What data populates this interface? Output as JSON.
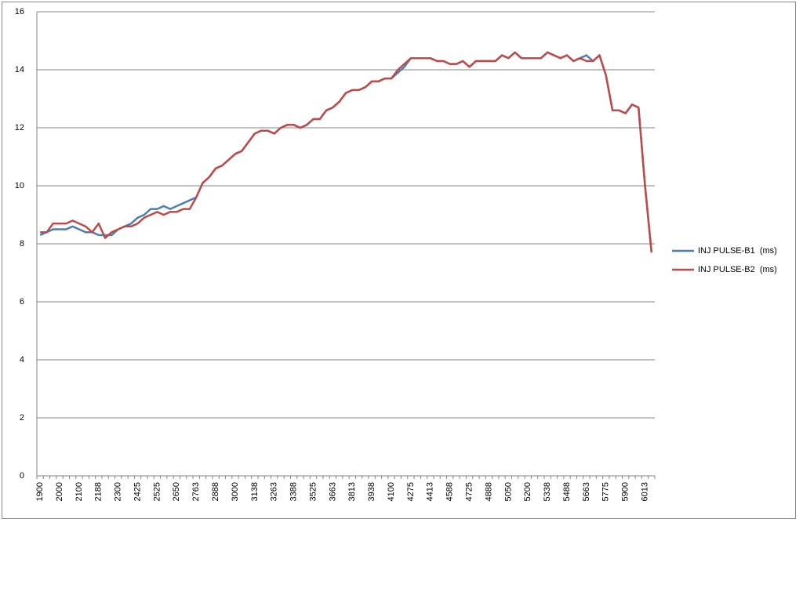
{
  "chart_data": {
    "type": "line",
    "categories": [
      "1900",
      null,
      null,
      "2000",
      null,
      null,
      "2100",
      null,
      null,
      "2188",
      null,
      null,
      "2300",
      null,
      null,
      "2425",
      null,
      null,
      "2525",
      null,
      null,
      "2650",
      null,
      null,
      "2763",
      null,
      null,
      "2888",
      null,
      null,
      "3000",
      null,
      null,
      "3138",
      null,
      null,
      "3263",
      null,
      null,
      "3388",
      null,
      null,
      "3525",
      null,
      null,
      "3663",
      null,
      null,
      "3813",
      null,
      null,
      "3938",
      null,
      null,
      "4100",
      null,
      null,
      "4275",
      null,
      null,
      "4413",
      null,
      null,
      "4588",
      null,
      null,
      "4725",
      null,
      null,
      "4888",
      null,
      null,
      "5050",
      null,
      null,
      "5200",
      null,
      null,
      "5338",
      null,
      null,
      "5488",
      null,
      null,
      "5663",
      null,
      null,
      "5775",
      null,
      null,
      "5900",
      null,
      null,
      "6013",
      null
    ],
    "series": [
      {
        "name": "INJ PULSE-B1  (ms)",
        "color": "#4a7ebb",
        "values": [
          8.3,
          8.4,
          8.5,
          8.5,
          8.5,
          8.6,
          8.5,
          8.4,
          8.4,
          8.3,
          8.3,
          8.3,
          8.5,
          8.6,
          8.7,
          8.9,
          9.0,
          9.2,
          9.2,
          9.3,
          9.2,
          9.3,
          9.4,
          9.5,
          9.6,
          10.1,
          10.3,
          10.6,
          10.7,
          10.9,
          11.1,
          11.2,
          11.5,
          11.8,
          11.9,
          11.9,
          11.8,
          12.0,
          12.1,
          12.1,
          12.0,
          12.1,
          12.3,
          12.3,
          12.6,
          12.7,
          12.9,
          13.2,
          13.3,
          13.3,
          13.4,
          13.6,
          13.6,
          13.7,
          13.7,
          13.9,
          14.1,
          14.4,
          14.4,
          14.4,
          14.4,
          14.3,
          14.3,
          14.2,
          14.2,
          14.3,
          14.1,
          14.3,
          14.3,
          14.3,
          14.3,
          14.5,
          14.4,
          14.6,
          14.4,
          14.4,
          14.4,
          14.4,
          14.6,
          14.5,
          14.4,
          14.5,
          14.3,
          14.4,
          14.5,
          14.3,
          14.5,
          13.8,
          12.6,
          12.6,
          12.5,
          12.8,
          12.7,
          10.0,
          7.7
        ]
      },
      {
        "name": "INJ PULSE-B2  (ms)",
        "color": "#be4b48",
        "values": [
          8.4,
          8.4,
          8.7,
          8.7,
          8.7,
          8.8,
          8.7,
          8.6,
          8.4,
          8.7,
          8.2,
          8.4,
          8.5,
          8.6,
          8.6,
          8.7,
          8.9,
          9.0,
          9.1,
          9.0,
          9.1,
          9.1,
          9.2,
          9.2,
          9.6,
          10.1,
          10.3,
          10.6,
          10.7,
          10.9,
          11.1,
          11.2,
          11.5,
          11.8,
          11.9,
          11.9,
          11.8,
          12.0,
          12.1,
          12.1,
          12.0,
          12.1,
          12.3,
          12.3,
          12.6,
          12.7,
          12.9,
          13.2,
          13.3,
          13.3,
          13.4,
          13.6,
          13.6,
          13.7,
          13.7,
          14.0,
          14.2,
          14.4,
          14.4,
          14.4,
          14.4,
          14.3,
          14.3,
          14.2,
          14.2,
          14.3,
          14.1,
          14.3,
          14.3,
          14.3,
          14.3,
          14.5,
          14.4,
          14.6,
          14.4,
          14.4,
          14.4,
          14.4,
          14.6,
          14.5,
          14.4,
          14.5,
          14.3,
          14.4,
          14.3,
          14.3,
          14.5,
          13.8,
          12.6,
          12.6,
          12.5,
          12.8,
          12.7,
          10.0,
          7.7
        ]
      }
    ],
    "ylim": [
      0,
      16
    ],
    "yticks": [
      0,
      2,
      4,
      6,
      8,
      10,
      12,
      14,
      16
    ],
    "grid": true,
    "legend": "right"
  }
}
